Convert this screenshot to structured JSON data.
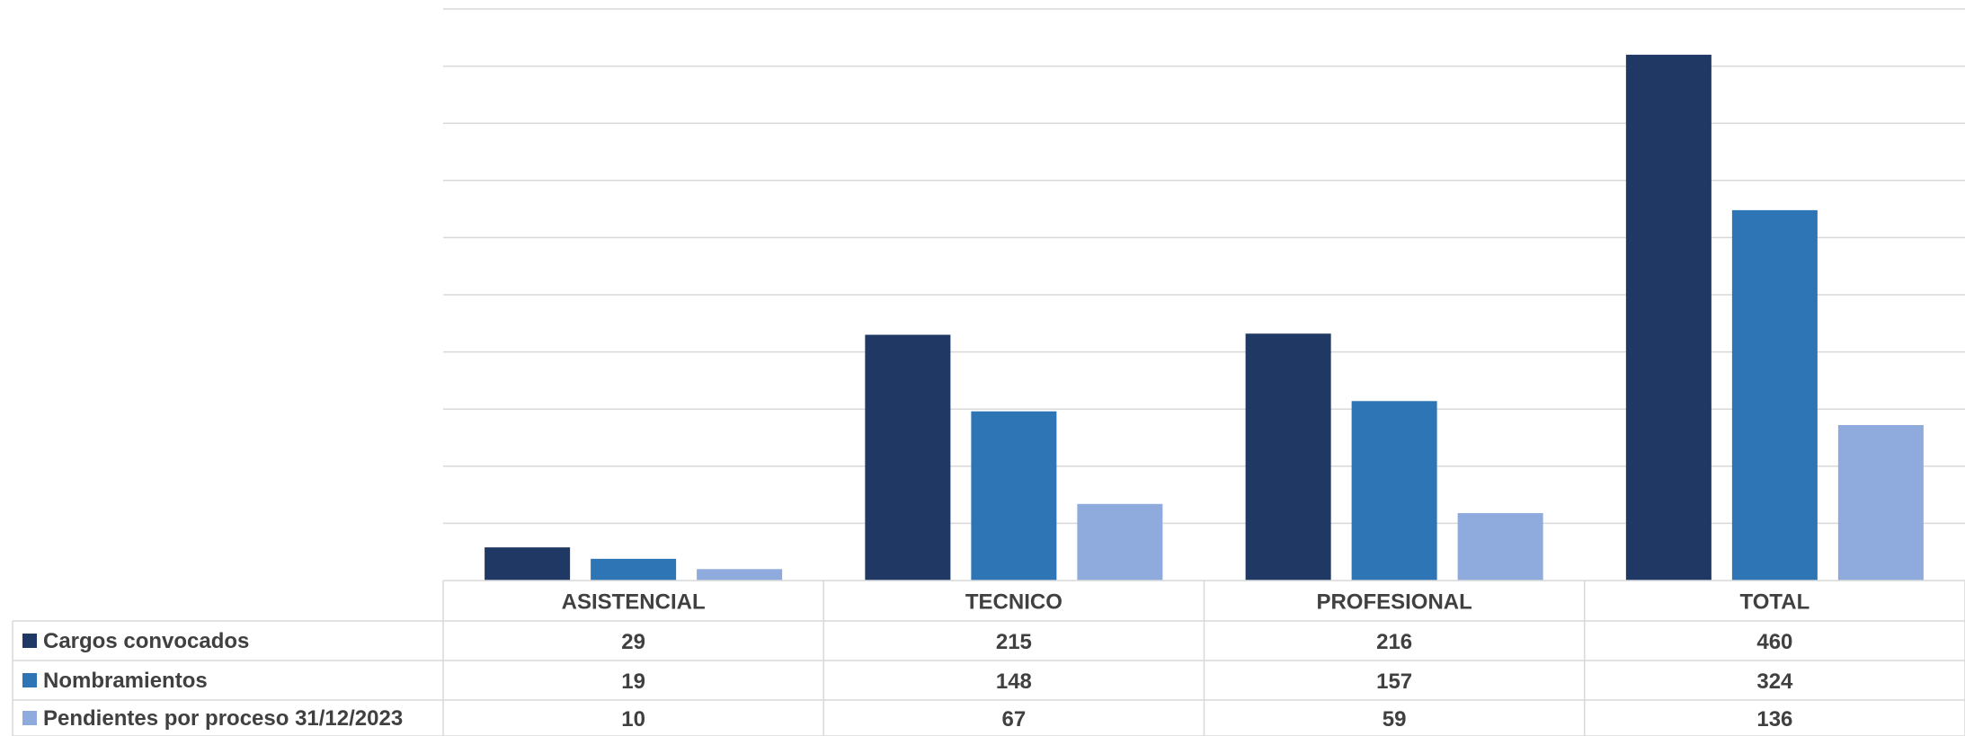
{
  "chart_data": {
    "type": "bar",
    "title": "",
    "xlabel": "",
    "ylabel": "",
    "categories": [
      "ASISTENCIAL",
      "TECNICO",
      "PROFESIONAL",
      "TOTAL"
    ],
    "series": [
      {
        "name": "Cargos convocados",
        "values": [
          29,
          215,
          216,
          460
        ],
        "color": "#1f3864"
      },
      {
        "name": "Nombramientos",
        "values": [
          19,
          148,
          157,
          324
        ],
        "color": "#2e75b6"
      },
      {
        "name": "Pendientes por proceso 31/12/2023",
        "values": [
          10,
          67,
          59,
          136
        ],
        "color": "#8faadc"
      }
    ],
    "ylim": [
      0,
      500
    ],
    "y_tick_step": 50,
    "y_tick_labels_shown": false,
    "grid": true,
    "legend": "data-table-left"
  }
}
